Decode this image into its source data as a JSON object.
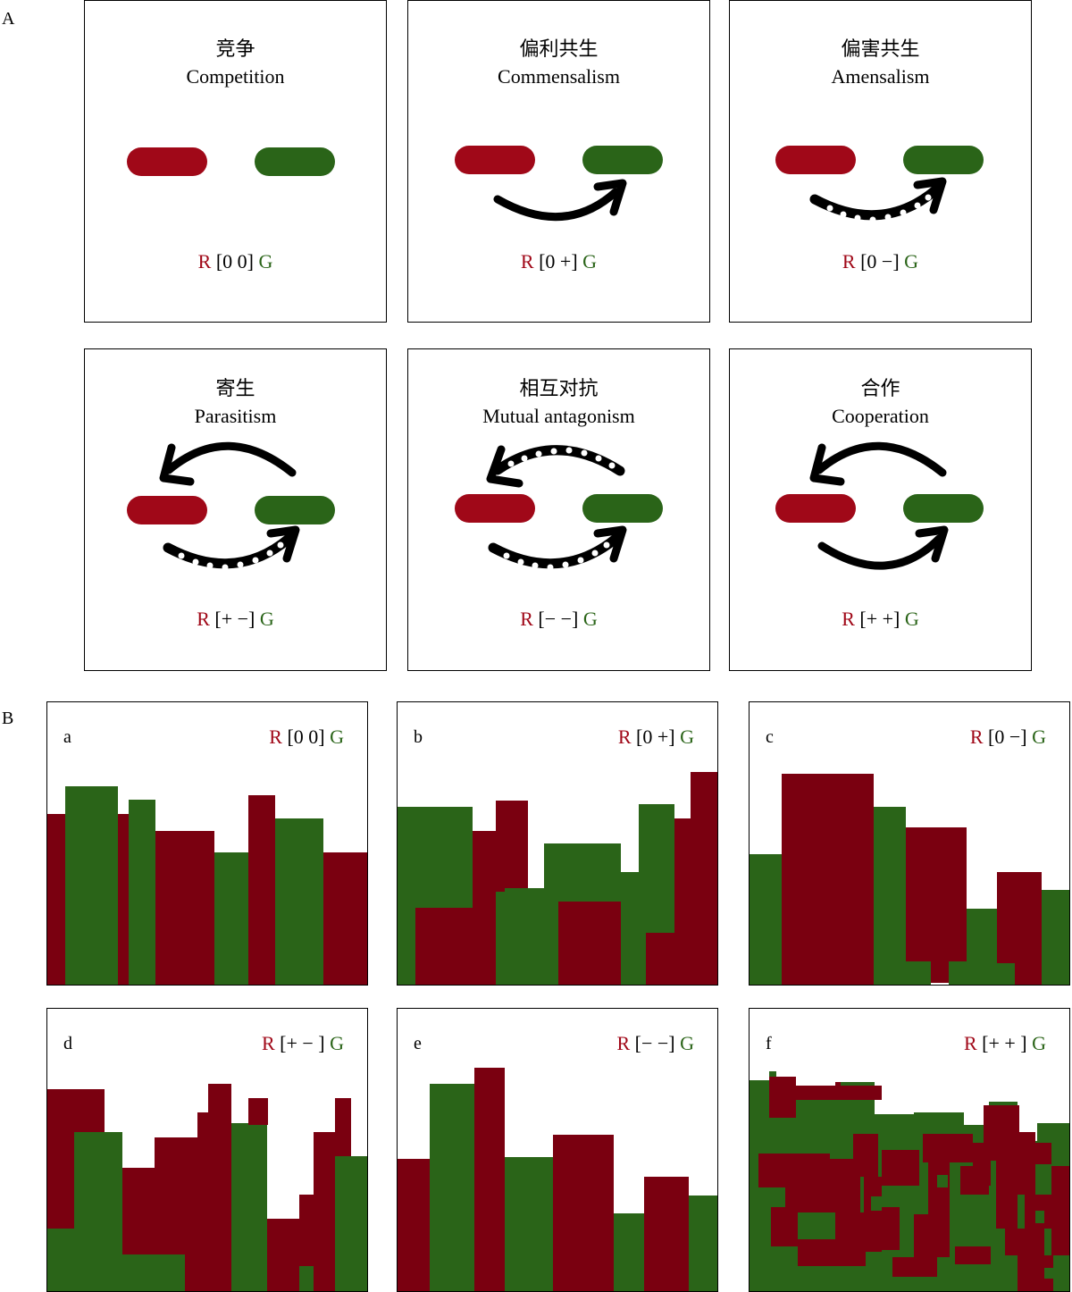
{
  "section_a_label": "A",
  "section_b_label": "B",
  "colors": {
    "red": "#a00818",
    "green": "#2a6418",
    "dark_red": "#7a0010"
  },
  "interactions": [
    {
      "zh": "竞争",
      "en": "Competition",
      "formula": {
        "r": "R",
        "signs": "[0 0]",
        "g": "G"
      }
    },
    {
      "zh": "偏利共生",
      "en": "Commensalism",
      "formula": {
        "r": "R",
        "signs": "[0 +]",
        "g": "G"
      }
    },
    {
      "zh": "偏害共生",
      "en": "Amensalism",
      "formula": {
        "r": "R",
        "signs": "[0 −]",
        "g": "G"
      }
    },
    {
      "zh": "寄生",
      "en": "Parasitism",
      "formula": {
        "r": "R",
        "signs": "[+  −]",
        "g": "G"
      }
    },
    {
      "zh": "相互对抗",
      "en": "Mutual antagonism",
      "formula": {
        "r": "R",
        "signs": "[−  −]",
        "g": "G"
      }
    },
    {
      "zh": "合作",
      "en": "Cooperation",
      "formula": {
        "r": "R",
        "signs": "[+  +]",
        "g": "G"
      }
    }
  ],
  "colonies": [
    {
      "letter": "a",
      "formula": {
        "r": "R",
        "signs": "[0 0]",
        "g": "G"
      }
    },
    {
      "letter": "b",
      "formula": {
        "r": "R",
        "signs": "[0 +]",
        "g": "G"
      }
    },
    {
      "letter": "c",
      "formula": {
        "r": "R",
        "signs": "[0 −]",
        "g": "G"
      }
    },
    {
      "letter": "d",
      "formula": {
        "r": "R",
        "signs": "[+  − ]",
        "g": "G"
      }
    },
    {
      "letter": "e",
      "formula": {
        "r": "R",
        "signs": "[− −]",
        "g": "G"
      }
    },
    {
      "letter": "f",
      "formula": {
        "r": "R",
        "signs": "[+  + ]",
        "g": "G"
      }
    }
  ]
}
